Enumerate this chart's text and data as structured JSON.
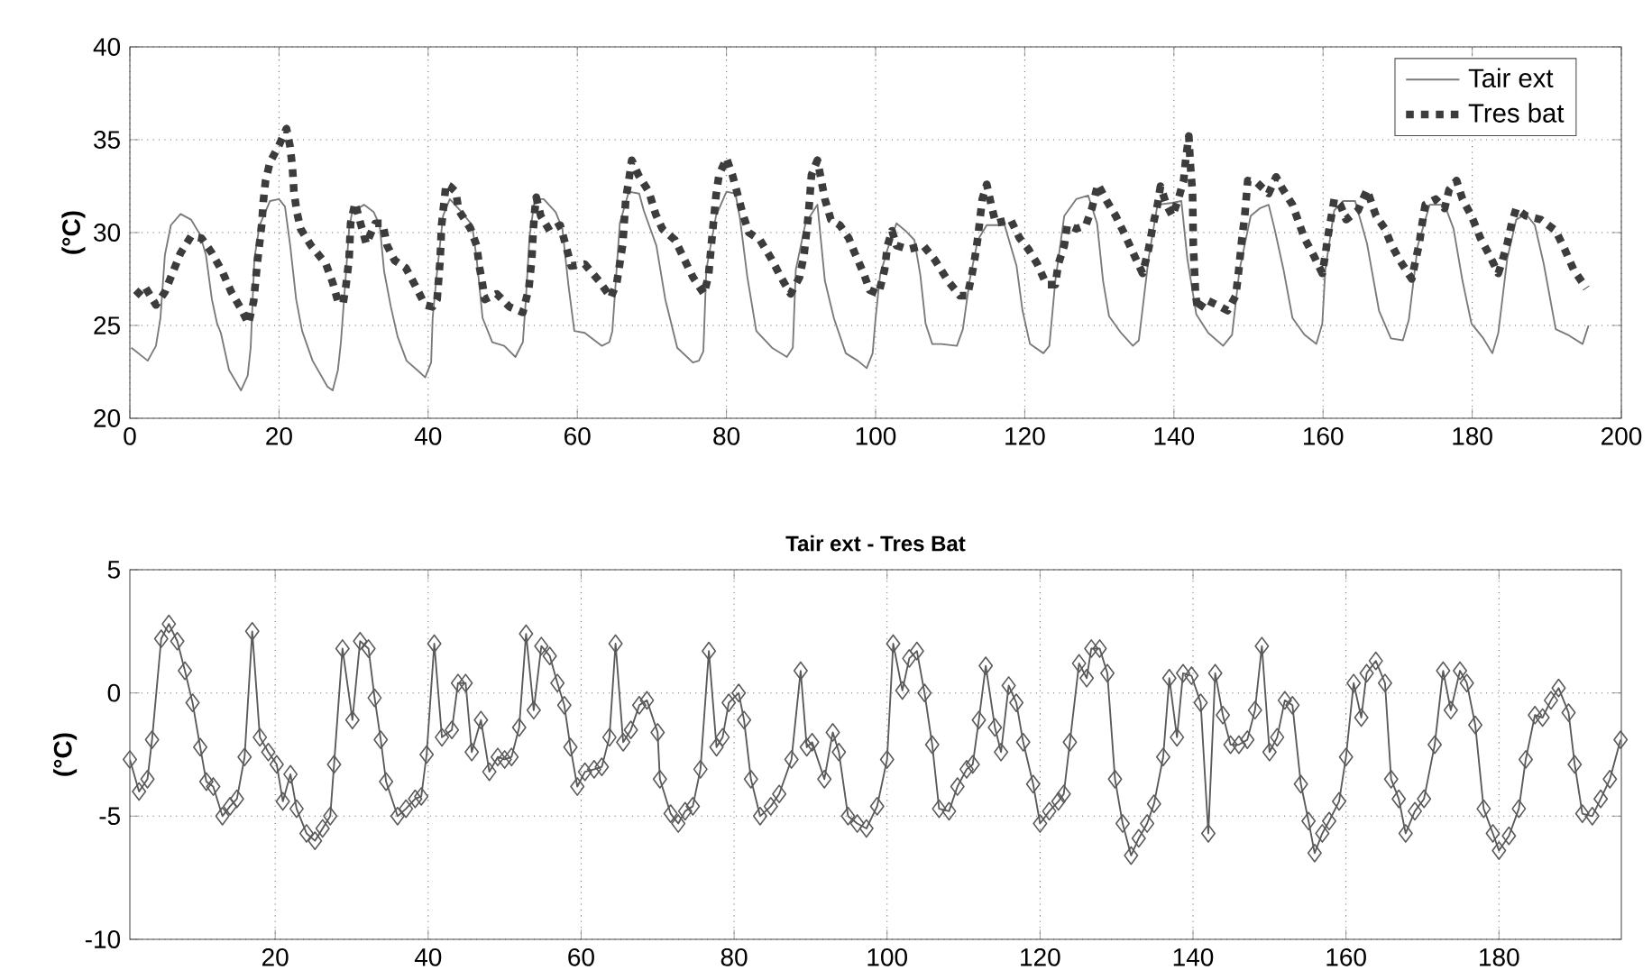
{
  "chart_data": [
    {
      "type": "line",
      "ylabel": "(°C)",
      "xlim": [
        0,
        200
      ],
      "ylim": [
        20,
        40
      ],
      "xticks": [
        0,
        20,
        40,
        60,
        80,
        100,
        120,
        140,
        160,
        180,
        200
      ],
      "yticks": [
        20,
        25,
        30,
        35,
        40
      ],
      "grid": true,
      "legend": "top right",
      "series": [
        {
          "name": "Tair ext",
          "color": "#7a7a7a",
          "line_style": "solid",
          "x": [
            0.2,
            2.4,
            3.5,
            4.1,
            4.7,
            5.5,
            6.8,
            8.2,
            9.4,
            10.2,
            11,
            11.7,
            12.2,
            13.3,
            14.9,
            15.8,
            16.2,
            16.7,
            17.4,
            18.8,
            20,
            20.8,
            21.5,
            22.3,
            23.1,
            24.5,
            26.5,
            27.2,
            27.9,
            28.3,
            29,
            29.4,
            29.8,
            31.4,
            32.7,
            33.5,
            34.1,
            35,
            35.9,
            37.1,
            38.8,
            39.6,
            40.4,
            40.6,
            41.2,
            42,
            42.9,
            44.5,
            45.9,
            46.5,
            47.3,
            48.6,
            50.2,
            51.7,
            52.7,
            53.1,
            53.6,
            54.3,
            55.5,
            57.1,
            58,
            58.8,
            59.6,
            61,
            63.3,
            64.3,
            64.7,
            65.7,
            66.9,
            68.3,
            68.9,
            70.6,
            71.8,
            73.4,
            75.5,
            76.3,
            76.9,
            77.3,
            78.6,
            80,
            81.2,
            81.8,
            82.8,
            84,
            86.1,
            88.1,
            88.9,
            89.3,
            90.6,
            92.2,
            93.2,
            94.4,
            96,
            97.6,
            98.8,
            99.6,
            100,
            100.6,
            101.6,
            102.8,
            104,
            105.2,
            106,
            106.7,
            107.6,
            108.8,
            110.9,
            111.7,
            112.6,
            113.7,
            114.9,
            117.3,
            118.9,
            119.7,
            120.7,
            122.5,
            123.3,
            124.1,
            125.3,
            126.9,
            128.5,
            129.7,
            130.5,
            131.3,
            132.9,
            134.5,
            135.3,
            136.6,
            137.8,
            139.8,
            141,
            141.8,
            143,
            144.6,
            146.6,
            147.8,
            148.8,
            150.3,
            151.5,
            152.7,
            153.5,
            154.7,
            155.9,
            157.5,
            159.1,
            159.9,
            160.3,
            161.5,
            162.7,
            164.3,
            165.9,
            167.5,
            169.1,
            170.7,
            171.5,
            172.7,
            174.3,
            176.3,
            177.5,
            178.7,
            179.9,
            181.5,
            182.7,
            183.5,
            184.7,
            185.9,
            187.2,
            188.4,
            189.6,
            191.2,
            192.8,
            194.8,
            195.6
          ],
          "values": [
            23.8,
            23.1,
            23.9,
            25.4,
            28.8,
            30.4,
            31,
            30.7,
            29.9,
            28.8,
            26.4,
            25.1,
            24.6,
            22.6,
            21.5,
            22.3,
            23.8,
            28.6,
            30.4,
            31.7,
            31.8,
            31.4,
            29.3,
            26.4,
            24.7,
            23.1,
            21.7,
            21.5,
            22.6,
            24.1,
            27.9,
            30.2,
            31.1,
            31.5,
            31.1,
            30.4,
            27.9,
            26,
            24.4,
            23.1,
            22.5,
            22.2,
            23,
            25.4,
            27.9,
            30.9,
            31.8,
            31.1,
            30.4,
            28.6,
            25.4,
            24.1,
            23.9,
            23.3,
            24.1,
            26.4,
            29.8,
            31.8,
            31.8,
            31.1,
            30.2,
            27.2,
            24.7,
            24.6,
            23.9,
            24.1,
            24.7,
            30.5,
            32.2,
            32.1,
            31.2,
            29.3,
            26.4,
            23.8,
            23,
            23.1,
            23.6,
            28,
            30.9,
            32.2,
            32.1,
            30.8,
            27.6,
            24.7,
            23.8,
            23.3,
            23.8,
            28,
            30.5,
            31.5,
            27.4,
            25.4,
            23.5,
            23.1,
            22.7,
            23.5,
            25.4,
            27.7,
            29.1,
            30.5,
            30.1,
            29.6,
            27.7,
            25.1,
            24,
            24,
            23.9,
            24.8,
            27.4,
            29.6,
            30.4,
            30.4,
            28.2,
            25.8,
            24,
            23.5,
            23.9,
            27.4,
            30.9,
            31.8,
            32,
            30.5,
            27.4,
            25.5,
            24.6,
            23.9,
            24.2,
            28.6,
            31.5,
            31.6,
            31.7,
            28.6,
            25.6,
            24.6,
            23.9,
            24.5,
            28,
            30.9,
            31.3,
            31.5,
            30.2,
            28,
            25.4,
            24.5,
            24,
            25.1,
            28,
            31.2,
            31.7,
            31.7,
            29.4,
            25.8,
            24.3,
            24.2,
            25.3,
            29.3,
            31.5,
            31.5,
            30.2,
            27.4,
            25.1,
            24.3,
            23.5,
            24.6,
            28.6,
            30.7,
            31,
            30.4,
            28.3,
            24.8,
            24.5,
            24,
            25
          ]
        },
        {
          "name": "Tres bat",
          "color": "#3c3c3c",
          "line_style": "dotted",
          "x": [
            0.8,
            2,
            3.5,
            4.7,
            5.7,
            6.8,
            8.2,
            9.6,
            11,
            12.4,
            13.6,
            14.9,
            15.9,
            16.6,
            17.1,
            17.7,
            17.9,
            18.2,
            18.8,
            20,
            21,
            21.5,
            21.8,
            22,
            22.4,
            22.9,
            24.3,
            26.3,
            27.2,
            27.9,
            28.6,
            29,
            29.4,
            29.6,
            30.2,
            31,
            31.7,
            32.9,
            33.9,
            34.5,
            35.5,
            37,
            38.2,
            39.6,
            40.6,
            41.2,
            41.6,
            41.8,
            42.4,
            42.9,
            43.7,
            44.1,
            45.7,
            46.5,
            46.9,
            47.3,
            47.6,
            49.2,
            50.9,
            52.7,
            53.5,
            53.9,
            54.1,
            54.3,
            54.5,
            55.1,
            56.3,
            57.7,
            58.6,
            59.2,
            61,
            62.9,
            64.5,
            65.3,
            66.1,
            66.5,
            66.9,
            67.3,
            68.2,
            69.6,
            70.5,
            71.4,
            73.1,
            74.3,
            75.5,
            77,
            77.6,
            78.1,
            78.6,
            79,
            80,
            80.8,
            81.6,
            82.2,
            83,
            84.5,
            86,
            87.3,
            88.6,
            89.8,
            90.4,
            91,
            91.4,
            92.2,
            93.2,
            94,
            95.2,
            96.4,
            97.2,
            98.4,
            99.2,
            100.4,
            101.2,
            101.6,
            102.2,
            102.8,
            104.4,
            106.4,
            108,
            109.7,
            111.3,
            112.3,
            112.9,
            113.3,
            113.7,
            114.3,
            114.9,
            115.5,
            116.1,
            118.1,
            119.3,
            120.5,
            121.7,
            122.9,
            124.1,
            124.5,
            125.3,
            125.7,
            126.9,
            128.2,
            129,
            129.8,
            131,
            132.2,
            133.4,
            135,
            135.8,
            136.6,
            137.2,
            137.8,
            138.2,
            139,
            139.8,
            140.6,
            141.3,
            141.6,
            142,
            142.2,
            142.5,
            142.6,
            142.9,
            143.2,
            144.2,
            145.8,
            147.2,
            148.3,
            148.7,
            149.1,
            149.5,
            149.9,
            151.1,
            152.7,
            153.7,
            154.5,
            155.9,
            157.5,
            158.7,
            159.9,
            160.3,
            160.7,
            161.5,
            162.3,
            163.1,
            164.7,
            165.9,
            167.1,
            168.3,
            169.1,
            170.3,
            171.9,
            172.3,
            172.9,
            173.3,
            173.7,
            175.1,
            176.3,
            176.9,
            177.9,
            178.7,
            179.9,
            181.1,
            182.3,
            183.5,
            183.9,
            184.7,
            185.3,
            185.9,
            187.2,
            189.2,
            191.2,
            192.4,
            193.6,
            195.3
          ],
          "values": [
            26.6,
            27.1,
            26.1,
            26.8,
            27.8,
            28.9,
            29.8,
            29.7,
            28.9,
            27.9,
            26.8,
            25.9,
            25.1,
            26.3,
            28.4,
            30.5,
            31.7,
            32.8,
            33.8,
            34.7,
            35.6,
            34.6,
            33.5,
            32.2,
            31.1,
            30.2,
            29.3,
            28.3,
            27.3,
            26.3,
            26.2,
            27.2,
            28.6,
            30.5,
            31.6,
            30.4,
            29.4,
            30.5,
            30.5,
            29.3,
            28.5,
            28.1,
            27.2,
            26.1,
            26,
            26.4,
            28.5,
            30.4,
            32.6,
            32.5,
            32.2,
            31.2,
            30.2,
            29.3,
            28.1,
            27.2,
            26.4,
            26.7,
            26,
            25.7,
            27,
            28.6,
            30.2,
            31.2,
            31.9,
            30.9,
            30.1,
            30.4,
            29.1,
            28.2,
            28.3,
            27.4,
            26.5,
            27.3,
            29.4,
            31.8,
            32.8,
            33.9,
            33.1,
            32.2,
            31,
            30.2,
            29.6,
            28.6,
            27.6,
            26.7,
            27.7,
            29.9,
            32,
            33.1,
            34,
            33.1,
            31.9,
            31,
            30,
            29.6,
            28.6,
            27.6,
            26.7,
            27.6,
            28.8,
            31,
            33.1,
            33.9,
            31.8,
            30.7,
            30.4,
            29.7,
            28.9,
            27.8,
            26.9,
            26.7,
            28,
            29.3,
            30.1,
            29.3,
            29.1,
            29.3,
            28.5,
            27.4,
            26.6,
            26.6,
            27.7,
            28.6,
            29.7,
            31.8,
            32.6,
            31.5,
            30.5,
            30.7,
            29.7,
            29.1,
            28.3,
            27.2,
            27.2,
            28.3,
            29.3,
            30.4,
            30.2,
            30.4,
            31.3,
            32.6,
            31.7,
            30.9,
            29.9,
            28.5,
            27.8,
            29.1,
            30.4,
            31.5,
            32.5,
            31.5,
            30.9,
            31.8,
            32.8,
            34,
            35.2,
            33.7,
            32.1,
            29.3,
            26.7,
            25.8,
            26.4,
            26.1,
            25.8,
            26.6,
            28,
            29.6,
            30.9,
            32.8,
            32.7,
            32.1,
            33,
            32.4,
            31.5,
            29.7,
            28.8,
            27.8,
            28.8,
            29.9,
            31.8,
            31.5,
            30.7,
            31.2,
            32.3,
            30.9,
            30.2,
            29.4,
            28.5,
            27.5,
            28.3,
            29.4,
            30.5,
            31.5,
            31.8,
            31.3,
            32.3,
            32.8,
            31.8,
            30.9,
            29.7,
            28.8,
            27.8,
            28.3,
            29.4,
            30.5,
            31.3,
            30.9,
            30.7,
            30.1,
            29.1,
            28,
            27
          ]
        }
      ]
    },
    {
      "type": "line",
      "title": "Tair ext - Tres Bat",
      "ylabel": "(°C)",
      "xlim": [
        1,
        196
      ],
      "ylim": [
        -10,
        5
      ],
      "xticks": [
        20,
        40,
        60,
        80,
        100,
        120,
        140,
        160,
        180
      ],
      "yticks": [
        -10,
        -5,
        0,
        5
      ],
      "grid": true,
      "marker": "diamond",
      "series": [
        {
          "color": "#5a5a5a",
          "x": [
            1,
            2.2,
            3.3,
            3.9,
            5.1,
            6.1,
            7.2,
            8.2,
            9.2,
            10.2,
            11,
            11.9,
            13.1,
            14.1,
            15,
            16,
            17,
            18,
            19.1,
            20.2,
            21,
            22,
            22.8,
            24.1,
            25.2,
            26.2,
            27.2,
            27.7,
            28.8,
            30.1,
            31.1,
            32.2,
            33,
            33.8,
            34.5,
            36,
            37.1,
            38.3,
            39.1,
            39.8,
            40.8,
            41.8,
            43.1,
            43.9,
            44.9,
            45.7,
            46.9,
            48,
            49.1,
            50,
            50.9,
            51.9,
            52.8,
            53.8,
            54.8,
            55.9,
            56.9,
            57.8,
            58.6,
            59.5,
            60.5,
            61.7,
            62.7,
            63.7,
            64.5,
            65.5,
            66.5,
            67.6,
            68.6,
            70,
            70.3,
            71.7,
            72.7,
            73.6,
            74.6,
            75.6,
            76.7,
            77.7,
            78.5,
            79.3,
            80.6,
            81.3,
            82.2,
            83.4,
            84.8,
            85.9,
            87.5,
            88.7,
            89.5,
            90.2,
            91.8,
            92.9,
            93.7,
            94.9,
            96.1,
            97.3,
            98.7,
            100,
            100.8,
            102,
            102.9,
            103.9,
            104.9,
            105.9,
            106.8,
            108.1,
            109.2,
            110.4,
            111.2,
            112,
            112.9,
            114.1,
            114.9,
            115.9,
            116.9,
            117.8,
            119.1,
            120,
            121.2,
            122.4,
            123.1,
            123.9,
            125.1,
            126.1,
            126.7,
            127.8,
            128.8,
            129.8,
            130.8,
            131.9,
            132.9,
            134,
            134.9,
            136.1,
            136.9,
            137.9,
            138.7,
            139.8,
            141,
            142,
            142.9,
            143.9,
            144.9,
            146,
            147.1,
            148.1,
            149,
            150,
            151,
            152,
            153,
            154.1,
            155.1,
            155.9,
            156.9,
            157.8,
            159.1,
            160,
            161,
            162,
            162.7,
            163.9,
            165.1,
            165.9,
            166.9,
            167.8,
            169,
            170.2,
            171.6,
            172.7,
            173.7,
            174.9,
            175.8,
            176.9,
            178,
            179.2,
            180,
            181.3,
            182.6,
            183.5,
            184.7,
            185.7,
            186.8,
            187.8,
            189.1,
            189.9,
            190.9,
            192.2,
            193.3,
            194.5,
            195.9
          ],
          "values": [
            -2.7,
            -4,
            -3.5,
            -1.9,
            2.2,
            2.8,
            2.1,
            0.9,
            -0.4,
            -2.2,
            -3.6,
            -3.8,
            -5,
            -4.6,
            -4.3,
            -2.6,
            2.5,
            -1.8,
            -2.4,
            -2.9,
            -4.4,
            -3.3,
            -4.7,
            -5.7,
            -6,
            -5.5,
            -5,
            -2.9,
            1.8,
            -1.1,
            2.1,
            1.8,
            -0.2,
            -1.9,
            -3.6,
            -5,
            -4.7,
            -4.3,
            -4.2,
            -2.5,
            2,
            -1.8,
            -1.5,
            0.4,
            0.4,
            -2.4,
            -1.1,
            -3.2,
            -2.6,
            -2.7,
            -2.6,
            -1.4,
            2.4,
            -0.7,
            1.9,
            1.5,
            0.4,
            -0.5,
            -2.2,
            -3.8,
            -3.2,
            -3.1,
            -3,
            -1.8,
            2,
            -2,
            -1.5,
            -0.5,
            -0.3,
            -1.6,
            -3.5,
            -4.9,
            -5.3,
            -4.8,
            -4.6,
            -3.1,
            1.7,
            -2.2,
            -1.8,
            -0.4,
            0,
            -1.1,
            -3.5,
            -5,
            -4.6,
            -4.1,
            -2.7,
            0.9,
            -2.2,
            -2,
            -3.5,
            -1.6,
            -2.4,
            -5,
            -5.3,
            -5.5,
            -4.6,
            -2.7,
            2,
            0.1,
            1.4,
            1.7,
            0,
            -2.1,
            -4.7,
            -4.8,
            -3.8,
            -3.1,
            -2.9,
            -1.1,
            1.1,
            -1.4,
            -2.4,
            0.3,
            -0.4,
            -2,
            -3.7,
            -5.3,
            -4.8,
            -4.4,
            -4.1,
            -2,
            1.2,
            0.6,
            1.8,
            1.8,
            0.8,
            -3.5,
            -5.3,
            -6.6,
            -5.9,
            -5.3,
            -4.5,
            -2.6,
            0.6,
            -1.8,
            0.8,
            0.7,
            -0.4,
            -5.7,
            0.8,
            -0.9,
            -2.1,
            -2.1,
            -1.9,
            -0.7,
            1.9,
            -2.4,
            -1.8,
            -0.3,
            -0.5,
            -3.7,
            -5.2,
            -6.5,
            -5.7,
            -5.2,
            -4.4,
            -2.6,
            0.4,
            -1,
            0.8,
            1.3,
            0.4,
            -3.5,
            -4.3,
            -5.7,
            -4.8,
            -4.3,
            -2.1,
            0.9,
            -0.7,
            0.9,
            0.4,
            -1.3,
            -4.7,
            -5.7,
            -6.4,
            -5.8,
            -4.7,
            -2.7,
            -0.9,
            -1,
            -0.3,
            0.2,
            -0.8,
            -2.9,
            -4.9,
            -5,
            -4.3,
            -3.5,
            -1.9
          ]
        }
      ]
    }
  ]
}
